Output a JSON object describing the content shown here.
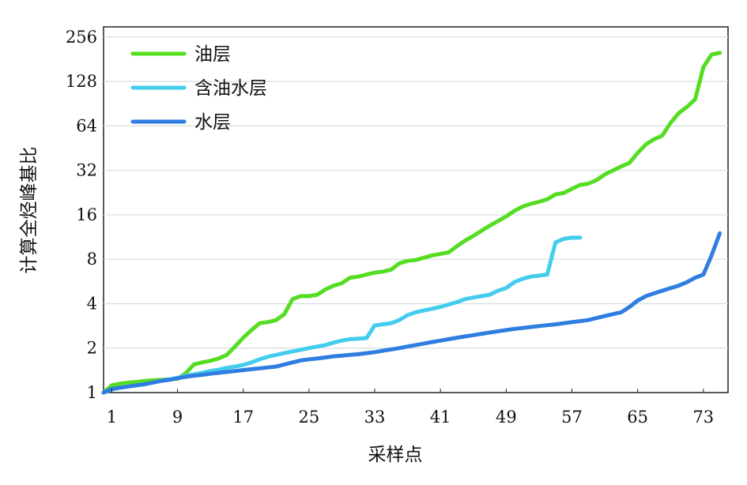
{
  "chart_data": {
    "type": "line",
    "title": "",
    "xlabel": "采样点",
    "ylabel": "计算全烃峰基比",
    "y_scale": "log2",
    "ylim": [
      1,
      300
    ],
    "xlim": [
      0,
      76
    ],
    "x_ticks": [
      1,
      9,
      17,
      25,
      33,
      41,
      49,
      57,
      65,
      73
    ],
    "y_ticks": [
      1,
      2,
      4,
      8,
      16,
      32,
      64,
      128,
      256
    ],
    "grid": "horizontal",
    "legend_position": "top-left",
    "series": [
      {
        "name": "油层",
        "color": "#55dd22",
        "x": [
          0,
          1,
          2,
          3,
          4,
          5,
          6,
          7,
          8,
          9,
          10,
          11,
          12,
          13,
          14,
          15,
          16,
          17,
          18,
          19,
          20,
          21,
          22,
          23,
          24,
          25,
          26,
          27,
          28,
          29,
          30,
          31,
          32,
          33,
          34,
          35,
          36,
          37,
          38,
          39,
          40,
          41,
          42,
          43,
          44,
          45,
          46,
          47,
          48,
          49,
          50,
          51,
          52,
          53,
          54,
          55,
          56,
          57,
          58,
          59,
          60,
          61,
          62,
          63,
          64,
          65,
          66,
          67,
          68,
          69,
          70,
          71,
          72,
          73,
          74,
          75
        ],
        "y": [
          1.0,
          1.12,
          1.15,
          1.17,
          1.18,
          1.2,
          1.21,
          1.22,
          1.23,
          1.24,
          1.35,
          1.55,
          1.6,
          1.64,
          1.7,
          1.8,
          2.05,
          2.35,
          2.65,
          2.95,
          3.0,
          3.1,
          3.4,
          4.3,
          4.5,
          4.5,
          4.6,
          5.0,
          5.3,
          5.5,
          6.0,
          6.1,
          6.3,
          6.5,
          6.6,
          6.8,
          7.5,
          7.8,
          7.9,
          8.2,
          8.5,
          8.7,
          8.9,
          9.8,
          10.7,
          11.5,
          12.5,
          13.5,
          14.5,
          15.6,
          17.0,
          18.2,
          19.0,
          19.6,
          20.4,
          22.0,
          22.5,
          24.0,
          25.5,
          26.0,
          27.5,
          30.0,
          32.0,
          34.0,
          36.0,
          42.0,
          48.0,
          52.0,
          55.0,
          67.0,
          78.0,
          86.0,
          97.0,
          160.0,
          195.0,
          200.0
        ]
      },
      {
        "name": "含油水层",
        "color": "#44ccee",
        "x": [
          0,
          1,
          2,
          3,
          4,
          5,
          6,
          7,
          8,
          9,
          10,
          11,
          12,
          13,
          14,
          15,
          16,
          17,
          18,
          19,
          20,
          21,
          22,
          23,
          24,
          25,
          26,
          27,
          28,
          29,
          30,
          31,
          32,
          33,
          34,
          35,
          36,
          37,
          38,
          39,
          40,
          41,
          42,
          43,
          44,
          45,
          46,
          47,
          48,
          49,
          50,
          51,
          52,
          53,
          54,
          55,
          56,
          57,
          58
        ],
        "y": [
          1.0,
          1.05,
          1.08,
          1.1,
          1.12,
          1.14,
          1.17,
          1.2,
          1.23,
          1.26,
          1.3,
          1.33,
          1.36,
          1.4,
          1.43,
          1.47,
          1.5,
          1.54,
          1.6,
          1.68,
          1.75,
          1.8,
          1.85,
          1.9,
          1.95,
          2.0,
          2.05,
          2.1,
          2.18,
          2.25,
          2.3,
          2.32,
          2.34,
          2.85,
          2.9,
          2.95,
          3.1,
          3.35,
          3.5,
          3.6,
          3.7,
          3.8,
          3.95,
          4.1,
          4.3,
          4.4,
          4.5,
          4.6,
          4.9,
          5.1,
          5.6,
          5.9,
          6.1,
          6.2,
          6.3,
          10.4,
          11.0,
          11.2,
          11.2
        ]
      },
      {
        "name": "水层",
        "color": "#2f7de0",
        "x": [
          0,
          1,
          2,
          3,
          4,
          5,
          6,
          7,
          8,
          9,
          10,
          11,
          12,
          13,
          14,
          15,
          16,
          17,
          18,
          19,
          20,
          21,
          22,
          23,
          24,
          25,
          26,
          27,
          28,
          29,
          30,
          31,
          32,
          33,
          34,
          35,
          36,
          37,
          38,
          39,
          40,
          41,
          42,
          43,
          44,
          45,
          46,
          47,
          48,
          49,
          50,
          51,
          52,
          53,
          54,
          55,
          56,
          57,
          58,
          59,
          60,
          61,
          62,
          63,
          64,
          65,
          66,
          67,
          68,
          69,
          70,
          71,
          72,
          73,
          74,
          75
        ],
        "y": [
          1.0,
          1.06,
          1.08,
          1.1,
          1.12,
          1.14,
          1.17,
          1.2,
          1.22,
          1.25,
          1.28,
          1.3,
          1.32,
          1.34,
          1.36,
          1.38,
          1.4,
          1.42,
          1.44,
          1.46,
          1.48,
          1.5,
          1.55,
          1.6,
          1.65,
          1.68,
          1.7,
          1.73,
          1.76,
          1.78,
          1.8,
          1.82,
          1.85,
          1.88,
          1.92,
          1.96,
          2.0,
          2.05,
          2.1,
          2.15,
          2.2,
          2.25,
          2.3,
          2.35,
          2.4,
          2.45,
          2.5,
          2.55,
          2.6,
          2.65,
          2.7,
          2.74,
          2.78,
          2.82,
          2.86,
          2.9,
          2.95,
          3.0,
          3.05,
          3.1,
          3.2,
          3.3,
          3.4,
          3.5,
          3.8,
          4.2,
          4.5,
          4.7,
          4.9,
          5.1,
          5.3,
          5.6,
          6.0,
          6.3,
          8.5,
          12.0
        ]
      }
    ]
  }
}
